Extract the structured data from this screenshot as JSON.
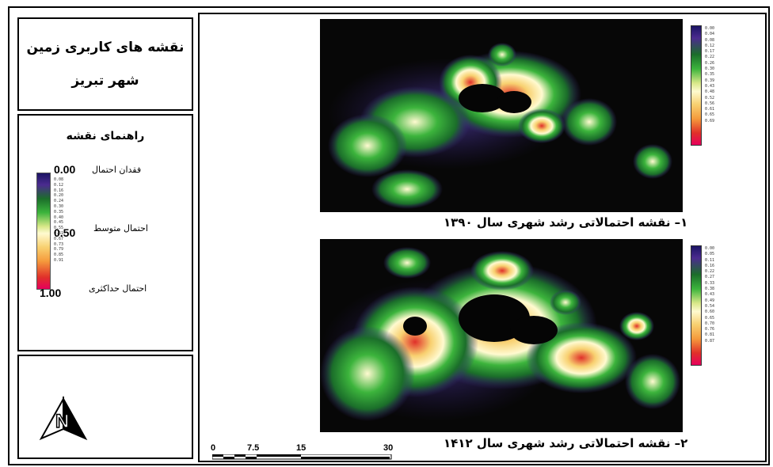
{
  "title": {
    "line1": "نقشه های کاربری زمین",
    "line2": "شهر تبریز"
  },
  "legend": {
    "title": "راهنمای نقشه",
    "min_value": "0.00",
    "mid_value": "0.50",
    "max_value": "1.00",
    "min_label": "فقدان احتمال",
    "mid_label": "احتمال متوسط",
    "max_label": "احتمال حداکثری",
    "ramp_ticks": [
      "0.08",
      "0.12",
      "0.16",
      "0.20",
      "0.24",
      "0.30",
      "0.35",
      "0.40",
      "0.45",
      "0.55",
      "0.61",
      "0.67",
      "0.73",
      "0.79",
      "0.85",
      "0.91"
    ],
    "ramp_colors": [
      "#1b1464",
      "#1b6e2a",
      "#3cb43c",
      "#fffad0",
      "#f59a3c",
      "#e0302a",
      "#e6005c"
    ]
  },
  "maps": [
    {
      "caption": "۱– نقشه احتمالاتی رشد شهری سال ۱۳۹۰",
      "ticks": [
        "0.00",
        "0.04",
        "0.08",
        "0.12",
        "0.17",
        "0.22",
        "0.26",
        "0.30",
        "0.35",
        "0.39",
        "0.43",
        "0.48",
        "0.52",
        "0.56",
        "0.61",
        "0.65",
        "0.69"
      ]
    },
    {
      "caption": "۲– نقشه احتمالاتی رشد شهری سال ۱۴۱۲",
      "ticks": [
        "0.00",
        "0.05",
        "0.11",
        "0.16",
        "0.22",
        "0.27",
        "0.33",
        "0.38",
        "0.43",
        "0.49",
        "0.54",
        "0.60",
        "0.65",
        "0.70",
        "0.76",
        "0.81",
        "0.87"
      ]
    }
  ],
  "scale_bar": {
    "labels": [
      "0",
      "7.5",
      "15",
      "30"
    ]
  },
  "north_arrow": {
    "letter": "N"
  }
}
